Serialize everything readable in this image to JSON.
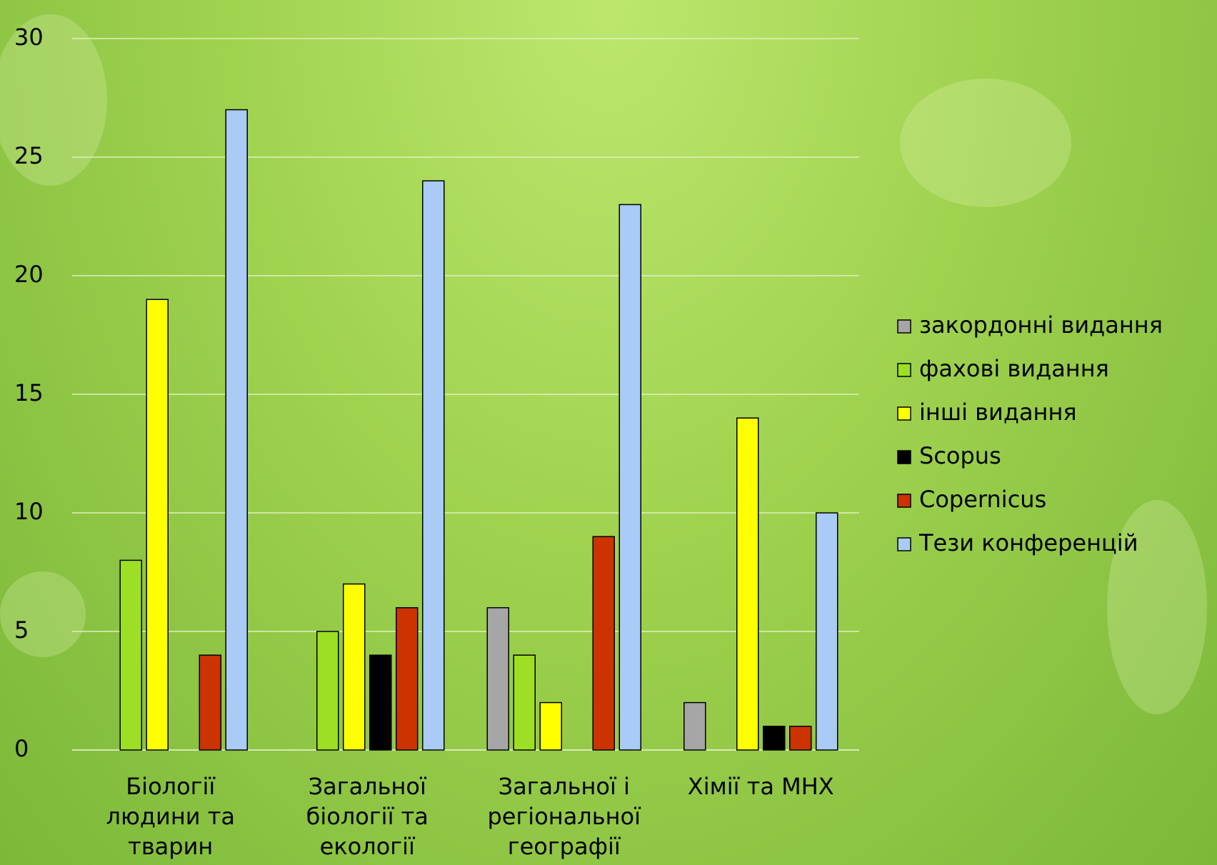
{
  "chart_data": {
    "type": "bar",
    "categories": [
      "Біології людини та тварин",
      "Загальної біології та екології",
      "Загальної і регіональної географії",
      "Хімії та МНХ"
    ],
    "series": [
      {
        "name": "закордонні видання",
        "color": "#a6a6a6",
        "values": [
          0,
          0,
          6,
          2
        ]
      },
      {
        "name": "фахові видання",
        "color": "#9ddf24",
        "values": [
          8,
          5,
          4,
          0
        ]
      },
      {
        "name": "інші видання",
        "color": "#ffff00",
        "values": [
          19,
          7,
          2,
          14
        ]
      },
      {
        "name": "Scopus",
        "color": "#000000",
        "values": [
          0,
          4,
          0,
          1
        ]
      },
      {
        "name": "Copernicus",
        "color": "#cc3300",
        "values": [
          4,
          6,
          9,
          1
        ]
      },
      {
        "name": "Тези конференцій",
        "color": "#a9cbf5",
        "values": [
          27,
          24,
          23,
          10
        ]
      }
    ],
    "ylim": [
      0,
      30
    ],
    "yticks": [
      0,
      5,
      10,
      15,
      20,
      25,
      30
    ],
    "grid": true,
    "legend": "right"
  }
}
